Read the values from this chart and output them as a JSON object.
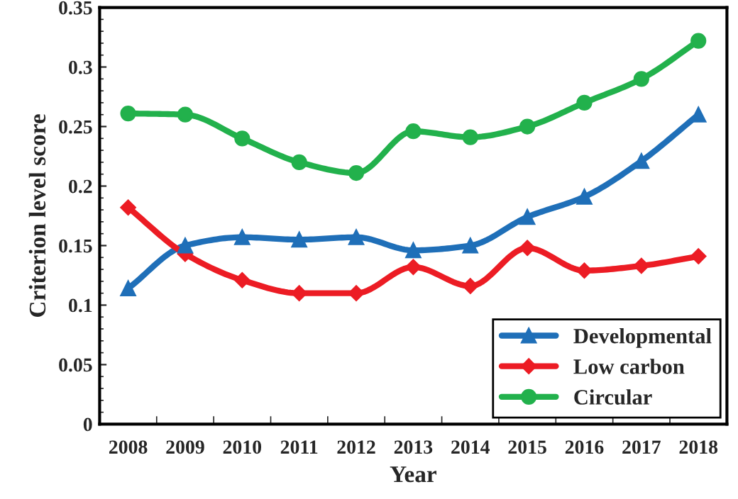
{
  "chart_data": {
    "type": "line",
    "xlabel": "Year",
    "ylabel": "Criterion level score",
    "categories": [
      "2008",
      "2009",
      "2010",
      "2011",
      "2012",
      "2013",
      "2014",
      "2015",
      "2016",
      "2017",
      "2018"
    ],
    "series": [
      {
        "name": "Developmental",
        "color": "#1f6fb8",
        "marker": "triangle",
        "values": [
          0.114,
          0.15,
          0.157,
          0.155,
          0.157,
          0.146,
          0.15,
          0.174,
          0.191,
          0.221,
          0.26
        ]
      },
      {
        "name": "Low carbon",
        "color": "#ec1c24",
        "marker": "diamond",
        "values": [
          0.182,
          0.143,
          0.121,
          0.11,
          0.11,
          0.132,
          0.116,
          0.148,
          0.129,
          0.133,
          0.141
        ]
      },
      {
        "name": "Circular",
        "color": "#22b14c",
        "marker": "circle",
        "values": [
          0.261,
          0.26,
          0.24,
          0.22,
          0.211,
          0.246,
          0.241,
          0.25,
          0.27,
          0.29,
          0.322
        ]
      }
    ],
    "ylim": [
      0,
      0.35
    ],
    "yticks": [
      {
        "value": 0,
        "label": "0"
      },
      0.05,
      {
        "value": 0.1,
        "label": "0.1"
      },
      0.15,
      {
        "value": 0.2,
        "label": "0.2"
      },
      0.25,
      {
        "value": 0.3,
        "label": "0.3"
      },
      0.35
    ],
    "legend": "bottom right",
    "grid": false,
    "line_style": "solid"
  }
}
